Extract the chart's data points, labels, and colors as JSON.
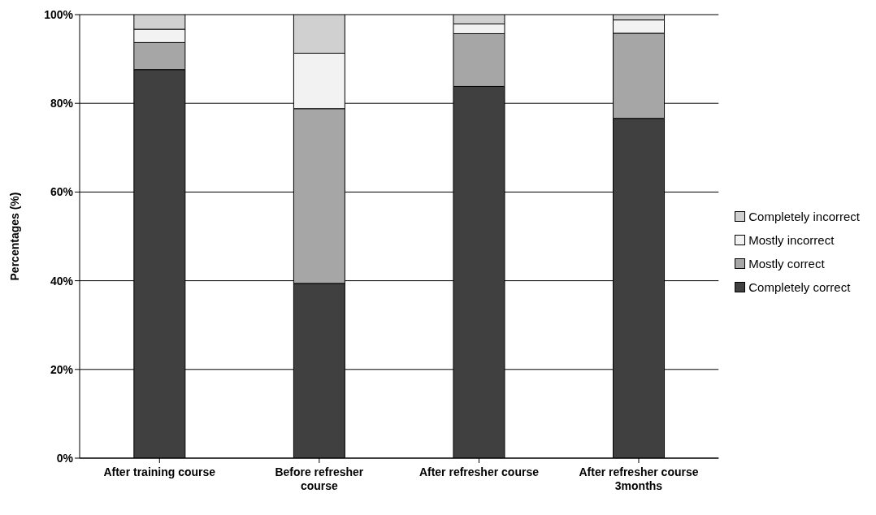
{
  "chart_data": {
    "type": "bar",
    "stacked": true,
    "ylabel": "Percentages (%)",
    "categories": [
      "After training course",
      "Before refresher course",
      "After refresher course",
      "After refresher course 3months"
    ],
    "series": [
      {
        "name": "Completely correct",
        "color": "#404040",
        "values": [
          87.6,
          39.4,
          83.8,
          76.6
        ]
      },
      {
        "name": "Mostly correct",
        "color": "#a6a6a6",
        "values": [
          6.1,
          39.4,
          11.9,
          19.2
        ]
      },
      {
        "name": "Mostly incorrect",
        "color": "#f2f2f2",
        "values": [
          3.0,
          12.5,
          2.2,
          3.0
        ]
      },
      {
        "name": "Completely incorrect",
        "color": "#d0d0d0",
        "values": [
          3.3,
          8.7,
          2.1,
          1.2
        ]
      }
    ],
    "ylim": [
      0,
      100
    ],
    "yticks": [
      {
        "value": 0,
        "label": "0%"
      },
      {
        "value": 20,
        "label": "20%"
      },
      {
        "value": 40,
        "label": "40%"
      },
      {
        "value": 60,
        "label": "60%"
      },
      {
        "value": 80,
        "label": "80%"
      },
      {
        "value": 100,
        "label": "100%"
      }
    ],
    "grid": "y",
    "legend": "right"
  }
}
